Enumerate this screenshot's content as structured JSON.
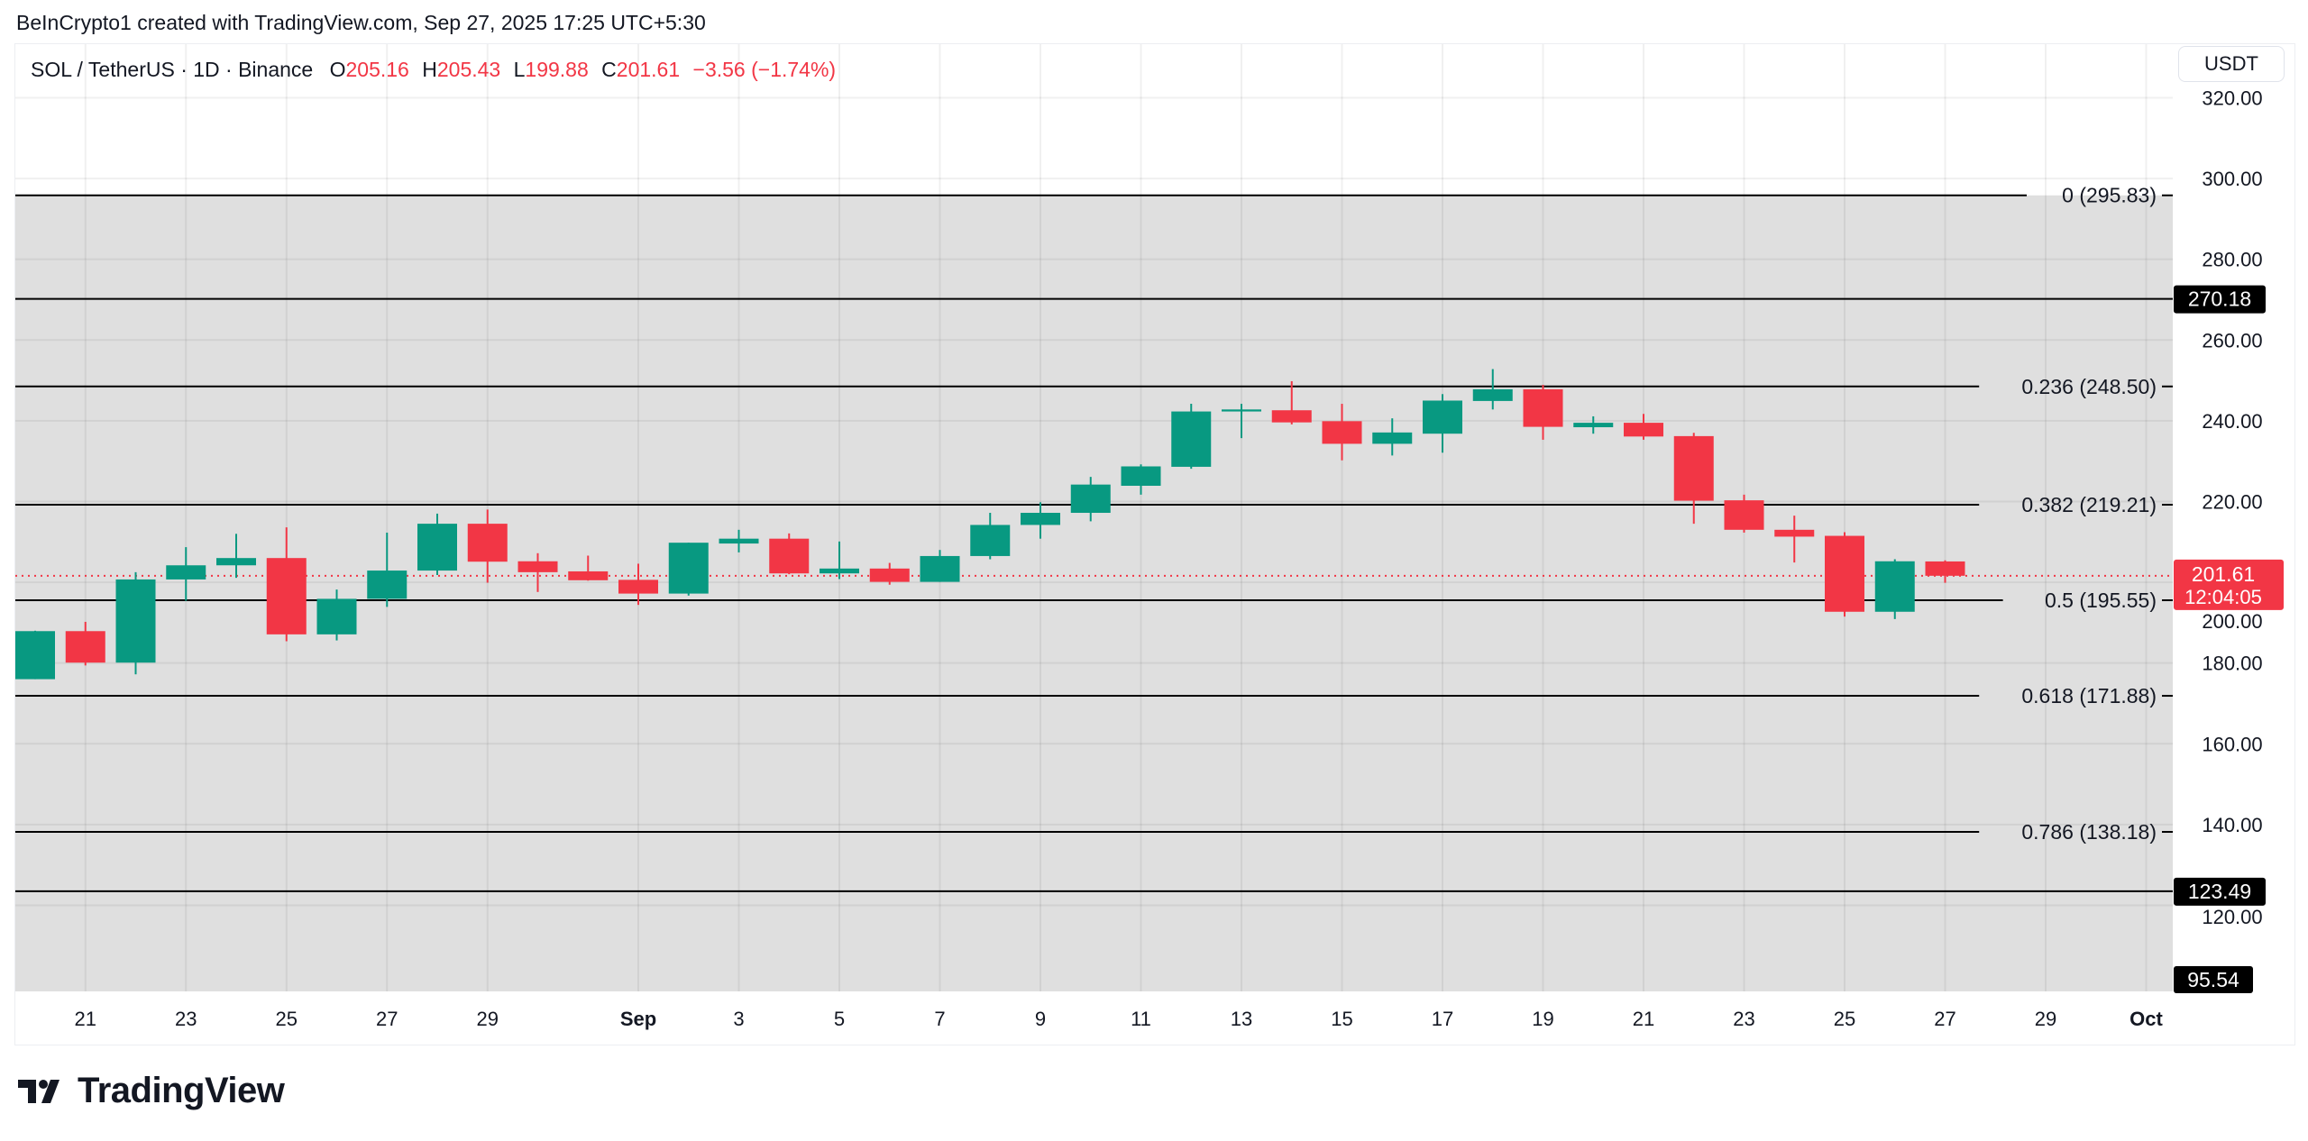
{
  "credit": "BeInCrypto1 created with TradingView.com, Sep 27, 2025 17:25 UTC+5:30",
  "legend": {
    "symbol": "SOL / TetherUS · 1D · Binance",
    "o_label": "O",
    "o": "205.16",
    "h_label": "H",
    "h": "205.43",
    "l_label": "L",
    "l": "199.88",
    "c_label": "C",
    "c": "201.61",
    "change": "−3.56 (−1.74%)"
  },
  "currency_button": "USDT",
  "logo_text": "TradingView",
  "colors": {
    "up": "#089981",
    "down": "#f23645",
    "fib_zone": "#dfdfdf",
    "line": "#000000"
  },
  "chart_data": {
    "type": "candlestick",
    "title": "",
    "y_range": [
      95.54,
      320
    ],
    "y_ticks": [
      "320.00",
      "300.00",
      "280.00",
      "260.00",
      "240.00",
      "220.00",
      "200.00",
      "180.00",
      "160.00",
      "140.00",
      "120.00"
    ],
    "x_ticks": [
      {
        "label": "21",
        "day": 1
      },
      {
        "label": "23",
        "day": 3
      },
      {
        "label": "25",
        "day": 5
      },
      {
        "label": "27",
        "day": 7
      },
      {
        "label": "29",
        "day": 9
      },
      {
        "label": "Sep",
        "day": 12,
        "bold": true
      },
      {
        "label": "3",
        "day": 14
      },
      {
        "label": "5",
        "day": 16
      },
      {
        "label": "7",
        "day": 18
      },
      {
        "label": "9",
        "day": 20
      },
      {
        "label": "11",
        "day": 22
      },
      {
        "label": "13",
        "day": 24
      },
      {
        "label": "15",
        "day": 26
      },
      {
        "label": "17",
        "day": 28
      },
      {
        "label": "19",
        "day": 30
      },
      {
        "label": "21",
        "day": 32
      },
      {
        "label": "23",
        "day": 34
      },
      {
        "label": "25",
        "day": 36
      },
      {
        "label": "27",
        "day": 38
      },
      {
        "label": "29",
        "day": 40
      },
      {
        "label": "Oct",
        "day": 42,
        "bold": true
      }
    ],
    "candles": [
      {
        "date": "Aug 20",
        "o": 176.0,
        "h": 188.0,
        "l": 176.0,
        "c": 187.9
      },
      {
        "date": "Aug 21",
        "o": 187.9,
        "h": 190.2,
        "l": 179.4,
        "c": 180.1
      },
      {
        "date": "Aug 22",
        "o": 180.1,
        "h": 202.5,
        "l": 177.2,
        "c": 200.7
      },
      {
        "date": "Aug 23",
        "o": 200.7,
        "h": 208.7,
        "l": 195.4,
        "c": 204.2
      },
      {
        "date": "Aug 24",
        "o": 204.2,
        "h": 212.0,
        "l": 201.1,
        "c": 206.0
      },
      {
        "date": "Aug 25",
        "o": 206.0,
        "h": 213.6,
        "l": 185.4,
        "c": 187.1
      },
      {
        "date": "Aug 26",
        "o": 187.1,
        "h": 198.2,
        "l": 185.6,
        "c": 195.9
      },
      {
        "date": "Aug 27",
        "o": 195.9,
        "h": 212.3,
        "l": 193.9,
        "c": 202.9
      },
      {
        "date": "Aug 28",
        "o": 202.9,
        "h": 217.0,
        "l": 201.8,
        "c": 214.5
      },
      {
        "date": "Aug 29",
        "o": 214.5,
        "h": 218.0,
        "l": 199.9,
        "c": 205.1
      },
      {
        "date": "Aug 30",
        "o": 205.2,
        "h": 207.2,
        "l": 197.6,
        "c": 202.5
      },
      {
        "date": "Aug 31",
        "o": 202.7,
        "h": 206.6,
        "l": 200.4,
        "c": 200.5
      },
      {
        "date": "Sep 1",
        "o": 200.6,
        "h": 204.6,
        "l": 194.4,
        "c": 197.2
      },
      {
        "date": "Sep 2",
        "o": 197.2,
        "h": 209.8,
        "l": 196.7,
        "c": 209.8
      },
      {
        "date": "Sep 3",
        "o": 209.6,
        "h": 213.0,
        "l": 207.4,
        "c": 210.8
      },
      {
        "date": "Sep 4",
        "o": 210.8,
        "h": 212.1,
        "l": 202.0,
        "c": 202.2
      },
      {
        "date": "Sep 5",
        "o": 202.2,
        "h": 210.1,
        "l": 200.8,
        "c": 203.4
      },
      {
        "date": "Sep 6",
        "o": 203.4,
        "h": 204.8,
        "l": 199.4,
        "c": 200.1
      },
      {
        "date": "Sep 7",
        "o": 200.1,
        "h": 208.0,
        "l": 200.1,
        "c": 206.5
      },
      {
        "date": "Sep 8",
        "o": 206.5,
        "h": 217.2,
        "l": 205.7,
        "c": 214.2
      },
      {
        "date": "Sep 9",
        "o": 214.2,
        "h": 219.8,
        "l": 210.8,
        "c": 217.2
      },
      {
        "date": "Sep 10",
        "o": 217.2,
        "h": 226.1,
        "l": 215.1,
        "c": 224.2
      },
      {
        "date": "Sep 11",
        "o": 223.9,
        "h": 229.2,
        "l": 221.7,
        "c": 228.7
      },
      {
        "date": "Sep 12",
        "o": 228.6,
        "h": 244.2,
        "l": 228.1,
        "c": 242.3
      },
      {
        "date": "Sep 13",
        "o": 242.3,
        "h": 244.2,
        "l": 235.7,
        "c": 242.8
      },
      {
        "date": "Sep 14",
        "o": 242.6,
        "h": 249.8,
        "l": 239.1,
        "c": 239.6
      },
      {
        "date": "Sep 15",
        "o": 239.9,
        "h": 244.2,
        "l": 230.2,
        "c": 234.3
      },
      {
        "date": "Sep 16",
        "o": 234.3,
        "h": 240.6,
        "l": 231.4,
        "c": 237.1
      },
      {
        "date": "Sep 17",
        "o": 236.8,
        "h": 246.6,
        "l": 232.1,
        "c": 245.0
      },
      {
        "date": "Sep 18",
        "o": 244.9,
        "h": 252.8,
        "l": 242.8,
        "c": 247.8
      },
      {
        "date": "Sep 19",
        "o": 247.8,
        "h": 248.9,
        "l": 235.3,
        "c": 238.5
      },
      {
        "date": "Sep 20",
        "o": 238.4,
        "h": 241.1,
        "l": 236.8,
        "c": 239.5
      },
      {
        "date": "Sep 21",
        "o": 239.5,
        "h": 241.7,
        "l": 235.3,
        "c": 236.1
      },
      {
        "date": "Sep 22",
        "o": 236.2,
        "h": 237.0,
        "l": 214.5,
        "c": 220.2
      },
      {
        "date": "Sep 23",
        "o": 220.3,
        "h": 221.7,
        "l": 212.3,
        "c": 213.0
      },
      {
        "date": "Sep 24",
        "o": 213.0,
        "h": 216.5,
        "l": 204.9,
        "c": 211.3
      },
      {
        "date": "Sep 25",
        "o": 211.5,
        "h": 212.4,
        "l": 191.5,
        "c": 192.7
      },
      {
        "date": "Sep 26",
        "o": 192.7,
        "h": 205.7,
        "l": 190.9,
        "c": 205.2
      },
      {
        "date": "Sep 27",
        "o": 205.16,
        "h": 205.43,
        "l": 199.88,
        "c": 201.61
      }
    ],
    "fib_levels": [
      {
        "ratio": "0",
        "price": 295.83,
        "label": "0 (295.83)"
      },
      {
        "ratio": "0.236",
        "price": 248.5,
        "label": "0.236 (248.50)"
      },
      {
        "ratio": "0.382",
        "price": 219.21,
        "label": "0.382 (219.21)"
      },
      {
        "ratio": "0.5",
        "price": 195.55,
        "label": "0.5 (195.55)"
      },
      {
        "ratio": "0.618",
        "price": 171.88,
        "label": "0.618 (171.88)"
      },
      {
        "ratio": "0.786",
        "price": 138.18,
        "label": "0.786 (138.18)"
      }
    ],
    "horizontal_lines": [
      {
        "price": 270.18,
        "label": "270.18"
      },
      {
        "price": 123.49,
        "label": "123.49"
      }
    ],
    "bottom_marker": {
      "price": 95.54,
      "label": "95.54"
    },
    "current_price": {
      "price": 201.61,
      "label": "201.61",
      "countdown": "12:04:05"
    }
  }
}
